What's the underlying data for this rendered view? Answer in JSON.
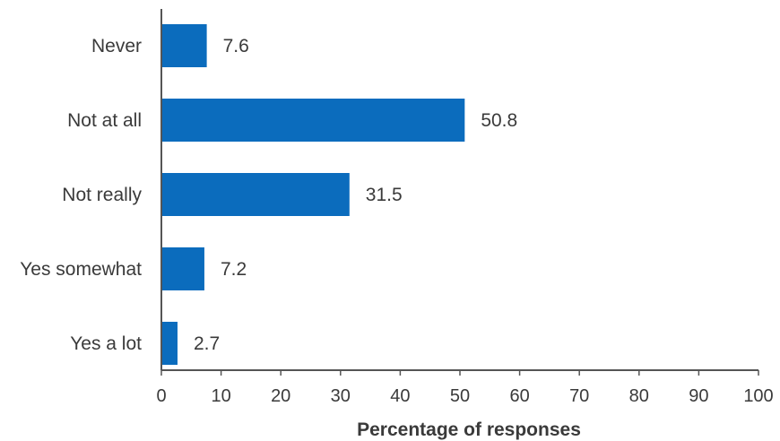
{
  "chart_data": {
    "type": "bar",
    "orientation": "horizontal",
    "categories": [
      "Never",
      "Not at all",
      "Not really",
      "Yes somewhat",
      "Yes a lot"
    ],
    "values": [
      7.6,
      50.8,
      31.5,
      7.2,
      2.7
    ],
    "data_labels": [
      "7.6",
      "50.8",
      "31.5",
      "7.2",
      "2.7"
    ],
    "xlabel": "Percentage of responses",
    "ylabel": "",
    "xlim": [
      0,
      100
    ],
    "xticks": [
      0,
      10,
      20,
      30,
      40,
      50,
      60,
      70,
      80,
      90,
      100
    ],
    "xtick_labels": [
      "0",
      "10",
      "20",
      "30",
      "40",
      "50",
      "60",
      "70",
      "80",
      "90",
      "100"
    ],
    "grid": false,
    "legend": "none",
    "bar_color": "#0b6cbd",
    "axis_color": "#555555"
  }
}
